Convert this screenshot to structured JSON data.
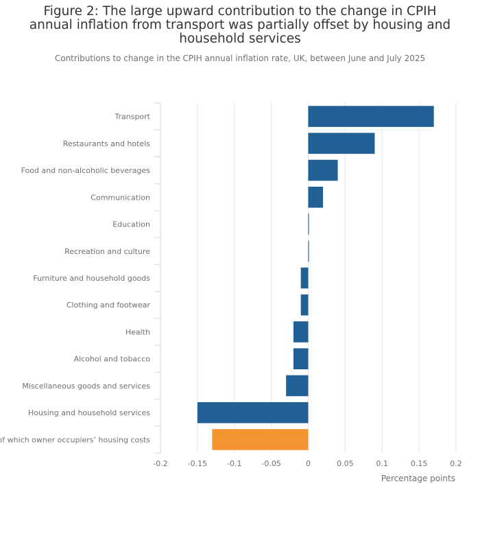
{
  "chart_data": {
    "type": "bar",
    "orientation": "horizontal",
    "title": "Figure 2: The large upward contribution to the change in CPIH annual inflation from transport was partially offset by housing and household services",
    "subtitle": "Contributions to change in the CPIH annual inflation rate, UK, between June and July 2025",
    "xlabel": "Percentage points",
    "ylabel": "",
    "xlim": [
      -0.2,
      0.2
    ],
    "xticks": [
      -0.2,
      -0.15,
      -0.1,
      -0.05,
      0,
      0.05,
      0.1,
      0.15,
      0.2
    ],
    "xtick_labels": [
      "-0.2",
      "-0.15",
      "-0.1",
      "-0.05",
      "0",
      "0.05",
      "0.1",
      "0.15",
      "0.2"
    ],
    "grid": true,
    "legend": "none",
    "categories": [
      "Transport",
      "Restaurants and hotels",
      "Food and non-alcoholic beverages",
      "Communication",
      "Education",
      "Recreation and culture",
      "Furniture and household goods",
      "Clothing and footwear",
      "Health",
      "Alcohol and tobacco",
      "Miscellaneous goods and services",
      "Housing and household services",
      "of which owner occupiers’ housing costs"
    ],
    "values": [
      0.17,
      0.09,
      0.04,
      0.02,
      0.001,
      0.001,
      -0.01,
      -0.01,
      -0.02,
      -0.02,
      -0.03,
      -0.15,
      -0.13
    ],
    "bar_colors": [
      "#206095",
      "#206095",
      "#206095",
      "#206095",
      "#206095",
      "#206095",
      "#206095",
      "#206095",
      "#206095",
      "#206095",
      "#206095",
      "#206095",
      "#f39431"
    ]
  },
  "colors": {
    "primary_bar": "#206095",
    "highlight_bar": "#f39431",
    "grid": "#e6e6e6",
    "axis_tick": "#cfd6df"
  }
}
